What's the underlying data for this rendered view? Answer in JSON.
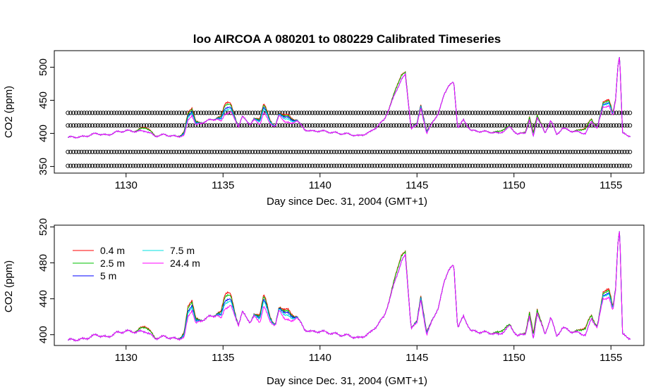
{
  "chart_data": [
    {
      "type": "line",
      "title": "loo   AIRCOA  A    080201  to  080229   Calibrated Timeseries",
      "xlabel": "Day since Dec. 31, 2004 (GMT+1)",
      "ylabel": "CO2 (ppm)",
      "xlim": [
        1126.3,
        1156.7
      ],
      "ylim": [
        340,
        525
      ],
      "xticks": [
        1130,
        1135,
        1140,
        1145,
        1150,
        1155
      ],
      "yticks": [
        350,
        400,
        450,
        500
      ],
      "calibration_x_range": [
        1127,
        1156
      ],
      "calibration_levels": [
        {
          "value": 431,
          "marker": "circle"
        },
        {
          "value": 412,
          "marker": "circle"
        },
        {
          "value": 372,
          "marker": "circle"
        },
        {
          "value": 351,
          "marker": "circle"
        }
      ],
      "colors": {
        "0.4 m": "#ff0000",
        "2.5 m": "#00c000",
        "5 m": "#0000ff",
        "7.5 m": "#00e0e0",
        "24.4 m": "#ff00ff",
        "calibration": "#000000"
      }
    },
    {
      "type": "line",
      "xlabel": "Day since Dec. 31, 2004 (GMT+1)",
      "ylabel": "CO2 (ppm)",
      "xlim": [
        1126.3,
        1156.7
      ],
      "ylim": [
        388,
        522
      ],
      "xticks": [
        1130,
        1135,
        1140,
        1145,
        1150,
        1155
      ],
      "yticks": [
        400,
        440,
        480,
        520
      ],
      "legend": {
        "position": "top-left",
        "entries": [
          {
            "label": "0.4 m",
            "color": "#ff0000"
          },
          {
            "label": "2.5 m",
            "color": "#00c000"
          },
          {
            "label": "5 m",
            "color": "#0000ff"
          },
          {
            "label": "7.5 m",
            "color": "#00e0e0"
          },
          {
            "label": "24.4 m",
            "color": "#ff00ff"
          }
        ]
      },
      "baseline_series": {
        "name": "24.4 m",
        "x": [
          1127.0,
          1127.8,
          1128.5,
          1129.0,
          1129.5,
          1130.0,
          1130.6,
          1131.0,
          1131.5,
          1132.0,
          1132.6,
          1133.0,
          1133.2,
          1133.4,
          1133.6,
          1133.9,
          1134.3,
          1134.7,
          1134.9,
          1135.1,
          1135.4,
          1135.8,
          1136.0,
          1136.4,
          1136.6,
          1136.9,
          1137.1,
          1137.4,
          1137.7,
          1137.9,
          1138.2,
          1138.5,
          1138.8,
          1139.2,
          1139.6,
          1140.0,
          1140.5,
          1141.0,
          1141.5,
          1142.0,
          1142.6,
          1143.0,
          1143.3,
          1143.6,
          1143.9,
          1144.2,
          1144.4,
          1144.7,
          1145.0,
          1145.2,
          1145.5,
          1145.8,
          1146.1,
          1146.4,
          1146.6,
          1146.9,
          1147.1,
          1147.4,
          1147.8,
          1148.3,
          1148.8,
          1149.2,
          1149.5,
          1149.8,
          1150.2,
          1150.6,
          1150.8,
          1151.0,
          1151.2,
          1151.6,
          1151.9,
          1152.2,
          1152.5,
          1152.9,
          1153.3,
          1153.7,
          1154.0,
          1154.3,
          1154.6,
          1154.9,
          1155.1,
          1155.25,
          1155.35,
          1155.45,
          1155.6,
          1155.8,
          1156.0
        ],
        "values": [
          394,
          395,
          400,
          397,
          402,
          404,
          403,
          404,
          396,
          398,
          395,
          397,
          420,
          428,
          412,
          416,
          420,
          422,
          417,
          430,
          432,
          411,
          425,
          414,
          420,
          414,
          432,
          416,
          410,
          427,
          418,
          414,
          420,
          406,
          403,
          404,
          402,
          400,
          399,
          396,
          402,
          412,
          420,
          440,
          462,
          482,
          488,
          408,
          412,
          440,
          398,
          418,
          428,
          460,
          470,
          478,
          408,
          420,
          404,
          403,
          402,
          400,
          404,
          410,
          398,
          402,
          420,
          395,
          425,
          400,
          420,
          398,
          408,
          404,
          402,
          400,
          418,
          408,
          440,
          442,
          425,
          452,
          500,
          518,
          400,
          398,
          396
        ]
      },
      "offsets_from_baseline": {
        "0.4 m": {
          "x": [
            1131.0,
            1133.3,
            1135.2,
            1137.1,
            1138.3,
            1144.1,
            1145.3,
            1149.4,
            1151.0,
            1153.7,
            1154.8
          ],
          "values": [
            6,
            12,
            17,
            13,
            12,
            7,
            5,
            3,
            6,
            8,
            10
          ]
        },
        "2.5 m": {
          "x": [
            1131.0,
            1133.3,
            1135.2,
            1137.1,
            1138.3,
            1144.1,
            1145.3,
            1149.4,
            1151.0,
            1153.7,
            1154.8
          ],
          "values": [
            5,
            10,
            14,
            11,
            10,
            6,
            4,
            3,
            5,
            7,
            8
          ]
        },
        "5 m": {
          "x": [
            1133.3,
            1135.2,
            1137.1,
            1138.3,
            1145.3,
            1154.8
          ],
          "values": [
            6,
            9,
            8,
            8,
            3,
            5
          ]
        },
        "7.5 m": {
          "x": [
            1133.3,
            1135.2,
            1137.1,
            1138.3,
            1145.3,
            1154.8
          ],
          "values": [
            4,
            6,
            6,
            5,
            2,
            4
          ]
        }
      }
    }
  ]
}
